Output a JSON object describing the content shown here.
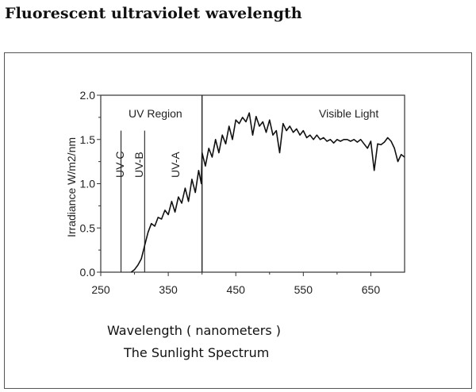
{
  "page_title": "Fluorescent ultraviolet wavelength",
  "chart_data": {
    "type": "line",
    "xlabel": "Wavelength ( nanometers )",
    "subtitle": "The Sunlight Spectrum",
    "ylabel": "Irradiance  W/m2/nm",
    "xlim": [
      250,
      700
    ],
    "ylim": [
      0.0,
      2.0
    ],
    "x_ticks": [
      "250",
      "350",
      "450",
      "550",
      "650"
    ],
    "x_tick_values": [
      250,
      350,
      450,
      550,
      650
    ],
    "y_ticks": [
      "0.0",
      "0.5",
      "1.0",
      "1.5",
      "2.0"
    ],
    "y_tick_values": [
      0.0,
      0.5,
      1.0,
      1.5,
      2.0
    ],
    "grid": false,
    "region_boundaries": [
      280,
      315,
      400
    ],
    "region_labels": {
      "uv_region": "UV Region",
      "visible": "Visible Light",
      "uv_c": "UV-C",
      "uv_b": "UV-B",
      "uv_a": "UV-A"
    },
    "series": [
      {
        "x": [
          295,
          300,
          305,
          310,
          315,
          320,
          325,
          330,
          335,
          340,
          345,
          350,
          355,
          360,
          365,
          370,
          375,
          380,
          385,
          390,
          395,
          399,
          400,
          405,
          410,
          415,
          420,
          425,
          430,
          435,
          440,
          445,
          450,
          455,
          460,
          465,
          470,
          475,
          480,
          485,
          490,
          495,
          500,
          505,
          510,
          515,
          520,
          525,
          530,
          535,
          540,
          545,
          550,
          555,
          560,
          565,
          570,
          575,
          580,
          585,
          590,
          595,
          600,
          605,
          610,
          615,
          620,
          625,
          630,
          635,
          640,
          645,
          650,
          655,
          660,
          665,
          670,
          675,
          680,
          685,
          690,
          695,
          700
        ],
        "y": [
          0.0,
          0.03,
          0.08,
          0.15,
          0.3,
          0.45,
          0.55,
          0.52,
          0.62,
          0.6,
          0.7,
          0.65,
          0.8,
          0.68,
          0.85,
          0.78,
          0.95,
          0.8,
          1.05,
          0.9,
          1.15,
          1.0,
          1.35,
          1.2,
          1.4,
          1.3,
          1.5,
          1.35,
          1.55,
          1.45,
          1.65,
          1.5,
          1.72,
          1.68,
          1.75,
          1.7,
          1.8,
          1.55,
          1.76,
          1.65,
          1.7,
          1.58,
          1.72,
          1.55,
          1.6,
          1.35,
          1.68,
          1.6,
          1.65,
          1.58,
          1.62,
          1.55,
          1.6,
          1.52,
          1.55,
          1.5,
          1.55,
          1.5,
          1.52,
          1.48,
          1.5,
          1.46,
          1.5,
          1.48,
          1.5,
          1.5,
          1.48,
          1.5,
          1.47,
          1.5,
          1.45,
          1.4,
          1.48,
          1.15,
          1.45,
          1.44,
          1.47,
          1.52,
          1.48,
          1.4,
          1.25,
          1.33,
          1.3
        ]
      }
    ]
  }
}
